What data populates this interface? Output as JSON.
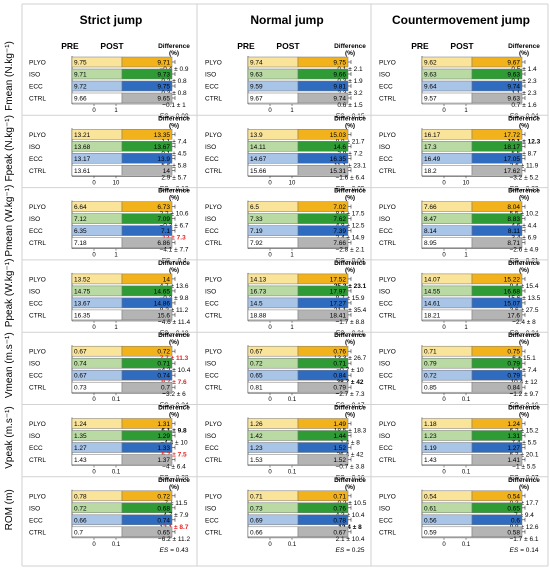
{
  "colors": {
    "PLYO": {
      "pre": "#f9e49a",
      "post": "#f2b21c"
    },
    "ISO": {
      "pre": "#b9dba3",
      "post": "#2e9b35"
    },
    "ECC": {
      "pre": "#a8c4e6",
      "post": "#2f6cc0"
    },
    "CTRL": {
      "pre": "#ffffff",
      "post": "#b4b4b4"
    },
    "emphasis_red": "#e8201f"
  },
  "labels": {
    "pre": "PRE",
    "post": "POST",
    "difference": "Difference",
    "difference_unit": "(%)",
    "es_prefix": "ES",
    "groups": [
      "PLYO",
      "ISO",
      "ECC",
      "CTRL"
    ]
  },
  "chart_data": {
    "type": "bar",
    "orientation": "horizontal",
    "jumps": [
      "Strict jump",
      "Normal jump",
      "Countermovement jump"
    ],
    "measures": [
      {
        "label": "Fmean (N.kg⁻¹)",
        "panels": [
          {
            "axis_ticks": [
              "0",
              "1"
            ],
            "pre": [
              9.75,
              9.71,
              9.72,
              9.66
            ],
            "post": [
              9.71,
              9.73,
              9.75,
              9.65
            ],
            "diff": [
              "−0.4 ± 0.9",
              "0.2 ± 0.8",
              "0.3 ± 0.8",
              "−0.1 ± 1"
            ],
            "diff_style": [
              "n",
              "n",
              "n",
              "n"
            ],
            "es": "= 0.09"
          },
          {
            "axis_ticks": [
              "0",
              "1"
            ],
            "pre": [
              9.74,
              9.63,
              9.59,
              9.67
            ],
            "post": [
              9.75,
              9.66,
              9.81,
              9.74
            ],
            "diff": [
              "0.1 ± 2.1",
              "0.3 ± 1.9",
              "2.3 ± 3.2",
              "0.6 ± 1.5"
            ],
            "diff_style": [
              "n",
              "n",
              "n",
              "n"
            ],
            "es": "= 0.15"
          },
          {
            "axis_ticks": [
              "0",
              "1"
            ],
            "pre": [
              9.62,
              9.63,
              9.64,
              9.57
            ],
            "post": [
              9.67,
              9.63,
              9.74,
              9.63
            ],
            "diff": [
              "0.5 ± 1.4",
              "0.1 ± 2.3",
              "1.1 ± 2.3",
              "0.7 ± 1.6"
            ],
            "diff_style": [
              "n",
              "n",
              "n",
              "n"
            ],
            "es": "= 0.04"
          }
        ]
      },
      {
        "label": "Fpeak (N.kg⁻¹)",
        "panels": [
          {
            "axis_ticks": [
              "0",
              "10"
            ],
            "pre": [
              13.21,
              13.68,
              13.17,
              13.61
            ],
            "post": [
              13.35,
              13.67,
              13.9,
              14
            ],
            "diff": [
              "1.1 ± 7.4",
              "0.1 ± 4.5",
              "5.6 ± 5.8",
              "2.9 ± 5.7"
            ],
            "diff_style": [
              "n",
              "n",
              "n",
              "n"
            ],
            "es": "= 0.12"
          },
          {
            "axis_ticks": [
              "0",
              "10"
            ],
            "pre": [
              13.9,
              14.11,
              14.67,
              15.66
            ],
            "post": [
              15.03,
              14.6,
              16.35,
              15.31
            ],
            "diff": [
              "8.8 ± 21.7",
              "3.9 ± 7.2",
              "11.1 ± 23.1",
              "−1.6 ± 6.4"
            ],
            "diff_style": [
              "n",
              "n",
              "n",
              "n"
            ],
            "es": "= 0.05"
          },
          {
            "axis_ticks": [
              "0",
              "10"
            ],
            "pre": [
              16.17,
              17.3,
              16.49,
              18.2
            ],
            "post": [
              17.72,
              18.17,
              17.05,
              17.62
            ],
            "diff": [
              "10.1 ± 12.3",
              "5.5 ± 8.7",
              "3.6 ± 11.9",
              "−3.2 ± 5.2"
            ],
            "diff_style": [
              "b",
              "n",
              "n",
              "n"
            ],
            "es": "= 0.23"
          }
        ]
      },
      {
        "label": "Pmean (W.kg⁻¹)",
        "panels": [
          {
            "axis_ticks": [
              "0",
              "1"
            ],
            "pre": [
              6.64,
              7.12,
              6.35,
              7.18
            ],
            "post": [
              6.73,
              7.09,
              7.1,
              6.86
            ],
            "diff": [
              "2.2 ± 10.6",
              "−0.3 ± 6.7",
              "12 ± 7.3",
              "−4.1 ± 7.7"
            ],
            "diff_style": [
              "n",
              "n",
              "r",
              "n"
            ],
            "es": "= 0.4"
          },
          {
            "axis_ticks": [
              "0",
              "1"
            ],
            "pre": [
              6.5,
              7.33,
              7.19,
              7.92
            ],
            "post": [
              7.02,
              7.62,
              7.39,
              7.66
            ],
            "diff": [
              "8.9 ± 17.5",
              "4.8 ± 12.5",
              "2.4 ± 14.9",
              "−2.8 ± 2.1"
            ],
            "diff_style": [
              "n",
              "n",
              "n",
              "n"
            ],
            "es": "= 0.04"
          },
          {
            "axis_ticks": [
              "0",
              "1"
            ],
            "pre": [
              7.66,
              8.47,
              8.14,
              8.95
            ],
            "post": [
              8.04,
              8.83,
              8.11,
              8.71
            ],
            "diff": [
              "5.5 ± 10.2",
              "4.6 ± 4.4",
              "3.4 ± 6.9",
              "−2.6 ± 4.9"
            ],
            "diff_style": [
              "n",
              "n",
              "n",
              "n"
            ],
            "es": "= 0.21"
          }
        ]
      },
      {
        "label": "Ppeak (W.kg⁻¹)",
        "panels": [
          {
            "axis_ticks": [
              "0",
              "1"
            ],
            "pre": [
              13.52,
              14.75,
              13.67,
              16.35
            ],
            "post": [
              14,
              14.65,
              14.86,
              15.6
            ],
            "diff": [
              "4.7 ± 13.6",
              "−0.3 ± 9.8",
              "8.2 ± 11.2",
              "−4.6 ± 11.4"
            ],
            "diff_style": [
              "n",
              "n",
              "n",
              "n"
            ],
            "es": "= 0.18"
          },
          {
            "axis_ticks": [
              "0",
              "1"
            ],
            "pre": [
              14.13,
              16.73,
              14.5,
              18.88
            ],
            "post": [
              17.52,
              17.97,
              17.27,
              18.41
            ],
            "diff": [
              "25.3 ± 23.1",
              "8.7 ± 15.9",
              "21.1 ± 35.4",
              "−1.7 ± 8.8"
            ],
            "diff_style": [
              "b",
              "n",
              "n",
              "n"
            ],
            "es": "= 0.21"
          },
          {
            "axis_ticks": [
              "0",
              "1"
            ],
            "pre": [
              14.07,
              14.55,
              14.61,
              18.21
            ],
            "post": [
              15.22,
              16.68,
              15.07,
              17.6
            ],
            "diff": [
              "9.4 ± 15.4",
              "15.6 ± 13.5",
              "3.6 ± 27.5",
              "−2.4 ± 8"
            ],
            "diff_style": [
              "n",
              "n",
              "n",
              "n"
            ],
            "es": "= 0.24"
          }
        ]
      },
      {
        "label": "Vmean (m.s⁻¹)",
        "panels": [
          {
            "axis_ticks": [
              "0",
              "0.1"
            ],
            "pre": [
              0.67,
              0.74,
              0.67,
              0.73
            ],
            "post": [
              0.72,
              0.71,
              0.74,
              0.7
            ],
            "diff": [
              "7.7 ± 11.3",
              "−4.2 ± 10.4",
              "9.7 ± 7.6",
              "−3.2 ± 6"
            ],
            "diff_style": [
              "r",
              "n",
              "r",
              "n"
            ],
            "es": "= 0.34"
          },
          {
            "axis_ticks": [
              "0",
              "0.1"
            ],
            "pre": [
              0.67,
              0.72,
              0.65,
              0.81
            ],
            "post": [
              0.76,
              0.71,
              0.84,
              0.79
            ],
            "diff": [
              "13.3 ± 26.7",
              "−0.7 ± 10",
              "28.7 ± 42",
              "−2.7 ± 7.3"
            ],
            "diff_style": [
              "n",
              "n",
              "b",
              "n"
            ],
            "es": "= 0.17"
          },
          {
            "axis_ticks": [
              "0",
              "0.1"
            ],
            "pre": [
              0.71,
              0.79,
              0.72,
              0.85
            ],
            "post": [
              0.75,
              0.79,
              0.79,
              0.84
            ],
            "diff": [
              "6 ± 15.1",
              "1.4 ± 7.4",
              "10.4 ± 12",
              "−1.2 ± 9.7"
            ],
            "diff_style": [
              "n",
              "n",
              "n",
              "n"
            ],
            "es": "= 0.16"
          }
        ]
      },
      {
        "label": "Vpeak (m.s⁻¹)",
        "panels": [
          {
            "axis_ticks": [
              "0",
              "0.1"
            ],
            "pre": [
              1.24,
              1.35,
              1.27,
              1.43
            ],
            "post": [
              1.31,
              1.29,
              1.33,
              1.37
            ],
            "diff": [
              "6.1 ± 9.8",
              "−4.4 ± 10",
              "5.7 ± 7.5",
              "−4 ± 6.4"
            ],
            "diff_style": [
              "b",
              "n",
              "r",
              "n"
            ],
            "es": "= 0.28"
          },
          {
            "axis_ticks": [
              "0",
              "0.1"
            ],
            "pre": [
              1.26,
              1.42,
              1.23,
              1.53
            ],
            "post": [
              1.49,
              1.44,
              1.52,
              1.52
            ],
            "diff": [
              "18.5 ± 18.3",
              "1.4 ± 8",
              "26.4 ± 42",
              "−0.7 ± 3.8"
            ],
            "diff_style": [
              "n",
              "n",
              "n",
              "n"
            ],
            "es": "= 0.16"
          },
          {
            "axis_ticks": [
              "0",
              "0.1"
            ],
            "pre": [
              1.18,
              1.23,
              1.19,
              1.43
            ],
            "post": [
              1.24,
              1.31,
              1.27,
              1.41
            ],
            "diff": [
              "6.2 ± 15.2",
              "7.4 ± 5.5",
              "6.3 ± 20.1",
              "−1 ± 5.5"
            ],
            "diff_style": [
              "n",
              "n",
              "n",
              "n"
            ],
            "es": "= 0.07"
          }
        ]
      },
      {
        "label": "ROM (m)",
        "panels": [
          {
            "axis_ticks": [
              "0",
              "0.1"
            ],
            "pre": [
              0.78,
              0.72,
              0.66,
              0.7
            ],
            "post": [
              0.72,
              0.68,
              0.74,
              0.65
            ],
            "diff": [
              "−7 ± 11.5",
              "−4.7 ± 7.9",
              "12.1 ± 8.7",
              "−6.2 ± 11.2"
            ],
            "diff_style": [
              "n",
              "n",
              "r",
              "n"
            ],
            "es": "= 0.43"
          },
          {
            "axis_ticks": [
              "0",
              "0.1"
            ],
            "pre": [
              0.71,
              0.73,
              0.69,
              0.66
            ],
            "post": [
              0.71,
              0.76,
              0.78,
              0.67
            ],
            "diff": [
              "−0.2 ± 10.5",
              "4.3 ± 10.4",
              "13.4 ± 8",
              "2.1 ± 10.4"
            ],
            "diff_style": [
              "n",
              "n",
              "b",
              "n"
            ],
            "es": "= 0.25"
          },
          {
            "axis_ticks": [
              "0",
              "0.1"
            ],
            "pre": [
              0.54,
              0.61,
              0.56,
              0.59
            ],
            "post": [
              0.54,
              0.65,
              0.6,
              0.58
            ],
            "diff": [
              "0.3 ± 17.7",
              "7 ± 9.4",
              "8.8 ± 12.6",
              "−1.7 ± 6.1"
            ],
            "diff_style": [
              "n",
              "n",
              "n",
              "n"
            ],
            "es": "= 0.14"
          }
        ]
      }
    ]
  }
}
